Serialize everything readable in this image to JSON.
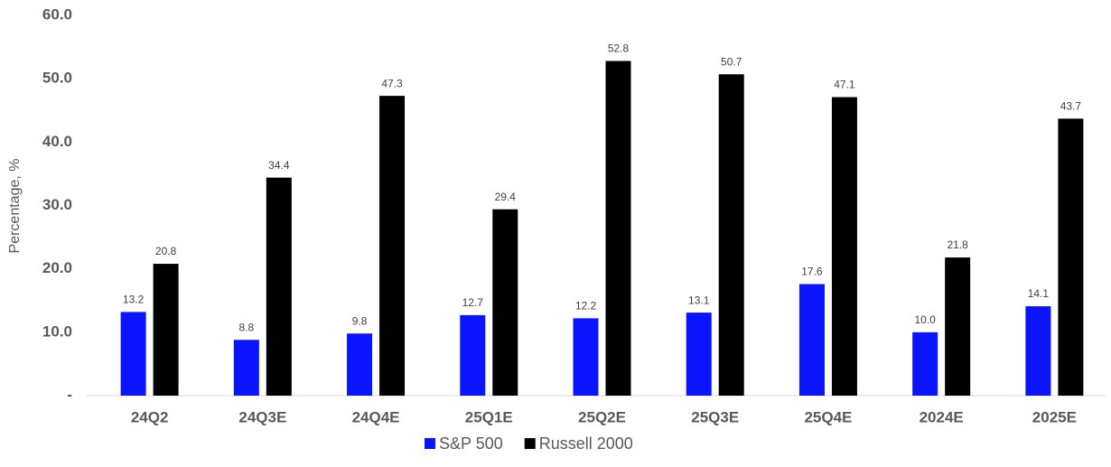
{
  "chart_data": {
    "type": "bar",
    "y_label": "Percentage, %",
    "categories": [
      "24Q2",
      "24Q3E",
      "24Q4E",
      "25Q1E",
      "25Q2E",
      "25Q3E",
      "25Q4E",
      "2024E",
      "2025E"
    ],
    "series": [
      {
        "name": "S&P 500",
        "color": "#0a14ff",
        "values": [
          13.2,
          8.8,
          9.8,
          12.7,
          12.2,
          13.1,
          17.6,
          10.0,
          14.1
        ],
        "value_labels": [
          "13.2",
          "8.8",
          "9.8",
          "12.7",
          "12.2",
          "13.1",
          "17.6",
          "10.0",
          "14.1"
        ]
      },
      {
        "name": "Russell 2000",
        "color": "#000000",
        "values": [
          20.8,
          34.4,
          47.3,
          29.4,
          52.8,
          50.7,
          47.1,
          21.8,
          43.7
        ],
        "value_labels": [
          "20.8",
          "34.4",
          "47.3",
          "29.4",
          "52.8",
          "50.7",
          "47.1",
          "21.8",
          "43.7"
        ]
      }
    ],
    "ylim": [
      0,
      60
    ],
    "yticks": [
      {
        "value": 0,
        "label": "-"
      },
      {
        "value": 10,
        "label": "10.0"
      },
      {
        "value": 20,
        "label": "20.0"
      },
      {
        "value": 30,
        "label": "30.0"
      },
      {
        "value": 40,
        "label": "40.0"
      },
      {
        "value": 50,
        "label": "50.0"
      },
      {
        "value": 60,
        "label": "60.0"
      }
    ],
    "grid": false,
    "legend": "bottom"
  }
}
